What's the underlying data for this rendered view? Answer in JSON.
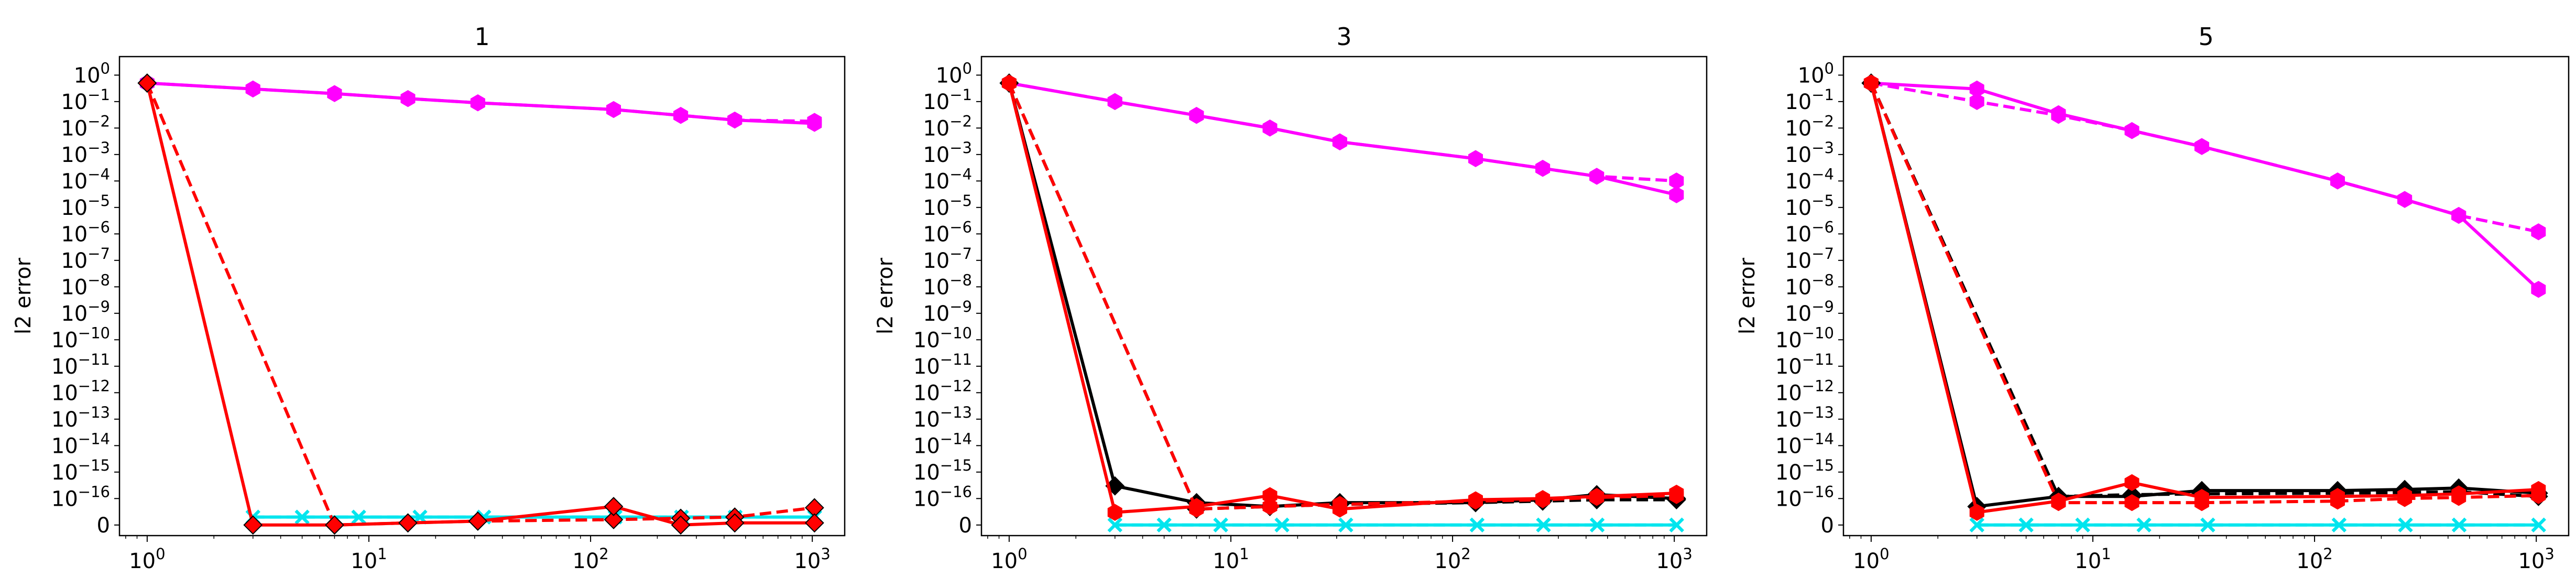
{
  "figure": {
    "ylabel": "l2 error"
  },
  "chart_data": [
    {
      "type": "line",
      "title": "1",
      "ylabel": "l2 error",
      "xscale": "log",
      "yscale": "symlog",
      "xlim": [
        0.75,
        1400
      ],
      "ylim": [
        -0.4,
        17.7
      ],
      "xticks": [
        1,
        10,
        100,
        1000
      ],
      "xtick_labels": [
        "10^0",
        "10^1",
        "10^2",
        "10^3"
      ],
      "yticks": [
        0,
        1,
        2,
        3,
        4,
        5,
        6,
        7,
        8,
        9,
        10,
        11,
        12,
        13,
        14,
        15,
        16,
        17
      ],
      "ytick_labels": [
        "0",
        "10^-16",
        "10^-15",
        "10^-14",
        "10^-13",
        "10^-12",
        "10^-11",
        "10^-10",
        "10^-9",
        "10^-8",
        "10^-7",
        "10^-6",
        "10^-5",
        "10^-4",
        "10^-3",
        "10^-2",
        "10^-1",
        "10^0"
      ],
      "grid": false,
      "series": [
        {
          "color": "#ff00ff",
          "linestyle": "dashed",
          "marker": "hexagon",
          "x": [
            1,
            3,
            7,
            15,
            31,
            127,
            255,
            447,
            1023
          ],
          "y": [
            0.5,
            0.3,
            0.2,
            0.13,
            0.09,
            0.05,
            0.03,
            0.02,
            0.018
          ]
        },
        {
          "color": "#ff00ff",
          "linestyle": "solid",
          "marker": "hexagon",
          "x": [
            1,
            3,
            7,
            15,
            31,
            127,
            255,
            447,
            1023
          ],
          "y": [
            0.5,
            0.3,
            0.2,
            0.13,
            0.09,
            0.05,
            0.03,
            0.02,
            0.015
          ]
        },
        {
          "color": "#00e5ee",
          "linestyle": "dashed",
          "marker": "x",
          "x": [
            3,
            5,
            9,
            17,
            33,
            129,
            257,
            449,
            1025
          ],
          "y": [
            2e-17,
            2e-17,
            2e-17,
            2e-17,
            2e-17,
            2e-17,
            2e-17,
            2e-17,
            2e-17
          ]
        },
        {
          "color": "#00e5ee",
          "linestyle": "solid",
          "marker": "x",
          "x": [
            3,
            5,
            9,
            17,
            33,
            129,
            257,
            449,
            1025
          ],
          "y": [
            2e-17,
            2e-17,
            2e-17,
            2e-17,
            2e-17,
            2e-17,
            2e-17,
            2e-17,
            2e-17
          ]
        },
        {
          "color": "#ff0000",
          "linestyle": "dashed",
          "marker": "diamond",
          "x": [
            1,
            7,
            15,
            31,
            127,
            255,
            447,
            1023
          ],
          "y": [
            0.5,
            1e-17,
            1.2e-17,
            1.4e-17,
            1.6e-17,
            1.8e-17,
            2e-17,
            4.5e-17
          ]
        },
        {
          "color": "#ff0000",
          "linestyle": "solid",
          "marker": "diamond",
          "x": [
            1,
            3,
            7,
            15,
            31,
            127,
            255,
            447,
            1023
          ],
          "y": [
            0.5,
            8e-18,
            1e-17,
            1.2e-17,
            1.4e-17,
            5e-17,
            1e-17,
            1.2e-17,
            1.2e-17
          ]
        }
      ]
    },
    {
      "type": "line",
      "title": "3",
      "ylabel": "l2 error",
      "xscale": "log",
      "yscale": "symlog",
      "xlim": [
        0.75,
        1400
      ],
      "ylim": [
        -0.4,
        17.7
      ],
      "xticks": [
        1,
        10,
        100,
        1000
      ],
      "xtick_labels": [
        "10^0",
        "10^1",
        "10^2",
        "10^3"
      ],
      "yticks": [
        0,
        1,
        2,
        3,
        4,
        5,
        6,
        7,
        8,
        9,
        10,
        11,
        12,
        13,
        14,
        15,
        16,
        17
      ],
      "ytick_labels": [
        "0",
        "10^-16",
        "10^-15",
        "10^-14",
        "10^-13",
        "10^-12",
        "10^-11",
        "10^-10",
        "10^-9",
        "10^-8",
        "10^-7",
        "10^-6",
        "10^-5",
        "10^-4",
        "10^-3",
        "10^-2",
        "10^-1",
        "10^0"
      ],
      "grid": false,
      "series": [
        {
          "color": "#ff00ff",
          "linestyle": "dashed",
          "marker": "hexagon",
          "x": [
            1,
            3,
            7,
            15,
            31,
            127,
            255,
            447,
            1023
          ],
          "y": [
            0.5,
            0.1,
            0.03,
            0.01,
            0.003,
            0.0007,
            0.0003,
            0.00015,
            0.0001
          ]
        },
        {
          "color": "#ff00ff",
          "linestyle": "solid",
          "marker": "hexagon",
          "x": [
            1,
            3,
            7,
            15,
            31,
            127,
            255,
            447,
            1023
          ],
          "y": [
            0.5,
            0.1,
            0.03,
            0.01,
            0.003,
            0.0007,
            0.0003,
            0.00015,
            3e-05
          ]
        },
        {
          "color": "#00e5ee",
          "linestyle": "dashed",
          "marker": "x",
          "x": [
            3,
            5,
            9,
            17,
            33,
            129,
            257,
            449,
            1025
          ],
          "y": [
            0,
            0,
            0,
            0,
            0,
            0,
            0,
            0,
            0
          ]
        },
        {
          "color": "#00e5ee",
          "linestyle": "solid",
          "marker": "x",
          "x": [
            3,
            5,
            9,
            17,
            33,
            129,
            257,
            449,
            1025
          ],
          "y": [
            0,
            0,
            0,
            0,
            0,
            0,
            0,
            0,
            0
          ]
        },
        {
          "color": "#000000",
          "linestyle": "dashed",
          "marker": "diamond",
          "x": [
            1,
            7,
            15,
            31,
            127,
            255,
            447,
            1023
          ],
          "y": [
            0.5,
            4e-17,
            5e-17,
            6e-17,
            7e-17,
            8e-17,
            9e-17,
            9e-17
          ]
        },
        {
          "color": "#000000",
          "linestyle": "solid",
          "marker": "diamond",
          "x": [
            1,
            3,
            7,
            15,
            31,
            127,
            255,
            447,
            1023
          ],
          "y": [
            0.5,
            3e-16,
            7e-17,
            5e-17,
            7e-17,
            7e-17,
            9e-17,
            1.4e-16,
            1e-16
          ]
        },
        {
          "color": "#ff0000",
          "linestyle": "dashed",
          "marker": "hexagon",
          "x": [
            1,
            7,
            15,
            31,
            127,
            255,
            447,
            1023
          ],
          "y": [
            0.5,
            4e-17,
            5e-17,
            6e-17,
            8e-17,
            9e-17,
            1.1e-16,
            1.3e-16
          ]
        },
        {
          "color": "#ff0000",
          "linestyle": "solid",
          "marker": "hexagon",
          "x": [
            1,
            3,
            7,
            15,
            31,
            127,
            255,
            447,
            1023
          ],
          "y": [
            0.5,
            3e-17,
            5e-17,
            1.3e-16,
            4e-17,
            9e-17,
            1e-16,
            1.2e-16,
            1.6e-16
          ]
        }
      ]
    },
    {
      "type": "line",
      "title": "5",
      "ylabel": "l2 error",
      "xscale": "log",
      "yscale": "symlog",
      "xlim": [
        0.75,
        1400
      ],
      "ylim": [
        -0.4,
        17.7
      ],
      "xticks": [
        1,
        10,
        100,
        1000
      ],
      "xtick_labels": [
        "10^0",
        "10^1",
        "10^2",
        "10^3"
      ],
      "yticks": [
        0,
        1,
        2,
        3,
        4,
        5,
        6,
        7,
        8,
        9,
        10,
        11,
        12,
        13,
        14,
        15,
        16,
        17
      ],
      "ytick_labels": [
        "0",
        "10^-16",
        "10^-15",
        "10^-14",
        "10^-13",
        "10^-12",
        "10^-11",
        "10^-10",
        "10^-9",
        "10^-8",
        "10^-7",
        "10^-6",
        "10^-5",
        "10^-4",
        "10^-3",
        "10^-2",
        "10^-1",
        "10^0"
      ],
      "grid": false,
      "series": [
        {
          "color": "#ff00ff",
          "linestyle": "dashed",
          "marker": "hexagon",
          "x": [
            1,
            3,
            7,
            15,
            31,
            127,
            255,
            447,
            1023
          ],
          "y": [
            0.5,
            0.1,
            0.03,
            0.008,
            0.002,
            0.0001,
            2e-05,
            5e-06,
            1.2e-06
          ]
        },
        {
          "color": "#ff00ff",
          "linestyle": "solid",
          "marker": "hexagon",
          "x": [
            1,
            3,
            7,
            15,
            31,
            127,
            255,
            447,
            1023
          ],
          "y": [
            0.5,
            0.3,
            0.035,
            0.008,
            0.002,
            0.0001,
            2e-05,
            5e-06,
            8e-09
          ]
        },
        {
          "color": "#00e5ee",
          "linestyle": "dashed",
          "marker": "x",
          "x": [
            3,
            5,
            9,
            17,
            33,
            129,
            257,
            449,
            1025
          ],
          "y": [
            0,
            0,
            0,
            0,
            0,
            0,
            0,
            0,
            0
          ]
        },
        {
          "color": "#00e5ee",
          "linestyle": "solid",
          "marker": "x",
          "x": [
            3,
            5,
            9,
            17,
            33,
            129,
            257,
            449,
            1025
          ],
          "y": [
            0,
            0,
            0,
            0,
            0,
            0,
            0,
            0,
            0
          ]
        },
        {
          "color": "#000000",
          "linestyle": "dashed",
          "marker": "diamond",
          "x": [
            1,
            7,
            15,
            31,
            127,
            255,
            447,
            1023
          ],
          "y": [
            0.5,
            1.2e-16,
            1.4e-16,
            1.5e-16,
            1.6e-16,
            1.7e-16,
            1.8e-16,
            1.2e-16
          ]
        },
        {
          "color": "#000000",
          "linestyle": "solid",
          "marker": "diamond",
          "x": [
            1,
            3,
            7,
            15,
            31,
            127,
            255,
            447,
            1023
          ],
          "y": [
            0.5,
            5e-17,
            1.2e-16,
            1.2e-16,
            2e-16,
            2e-16,
            2.2e-16,
            2.5e-16,
            1.6e-16
          ]
        },
        {
          "color": "#ff0000",
          "linestyle": "dashed",
          "marker": "hexagon",
          "x": [
            1,
            7,
            15,
            31,
            127,
            255,
            447,
            1023
          ],
          "y": [
            0.5,
            7e-17,
            7e-17,
            7e-17,
            8e-17,
            1e-16,
            1.1e-16,
            1.3e-16
          ]
        },
        {
          "color": "#ff0000",
          "linestyle": "solid",
          "marker": "hexagon",
          "x": [
            1,
            3,
            7,
            15,
            31,
            127,
            255,
            447,
            1023
          ],
          "y": [
            0.5,
            3e-17,
            8e-17,
            4e-16,
            1.1e-16,
            1.2e-16,
            1.3e-16,
            1.5e-16,
            2.2e-16
          ]
        }
      ]
    }
  ]
}
